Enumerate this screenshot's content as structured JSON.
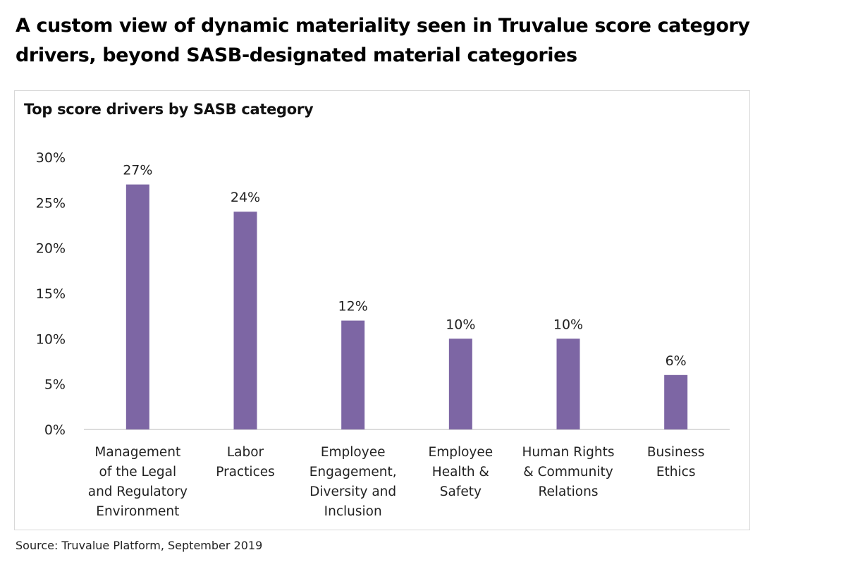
{
  "headline": "A custom view of dynamic materiality seen in Truvalue score category drivers, beyond SASB-designated material categories",
  "source": "Source: Truvalue Platform, September 2019",
  "colors": {
    "bar": "#7d66a4",
    "axis": "#d0d0d0",
    "frame": "#d8d8d8"
  },
  "chart_data": {
    "type": "bar",
    "title": "Top score drivers by SASB category",
    "xlabel": "",
    "ylabel": "",
    "ylim": [
      0,
      30
    ],
    "yticks": [
      0,
      5,
      10,
      15,
      20,
      25,
      30
    ],
    "ytick_labels": [
      "0%",
      "5%",
      "10%",
      "15%",
      "20%",
      "25%",
      "30%"
    ],
    "categories": [
      "Management of the Legal and Regulatory Environment",
      "Labor Practices",
      "Employee Engagement, Diversity and Inclusion",
      "Employee Health & Safety",
      "Human Rights & Community Relations",
      "Business Ethics"
    ],
    "category_lines": [
      [
        "Management",
        "of the Legal",
        "and Regulatory",
        "Environment"
      ],
      [
        "Labor",
        "Practices"
      ],
      [
        "Employee",
        "Engagement,",
        "Diversity and",
        "Inclusion"
      ],
      [
        "Employee",
        "Health &",
        "Safety"
      ],
      [
        "Human Rights",
        "& Community",
        "Relations"
      ],
      [
        "Business",
        "Ethics"
      ]
    ],
    "values": [
      27,
      24,
      12,
      10,
      10,
      6
    ],
    "value_labels": [
      "27%",
      "24%",
      "12%",
      "10%",
      "10%",
      "6%"
    ],
    "grid": false,
    "legend": "none"
  }
}
